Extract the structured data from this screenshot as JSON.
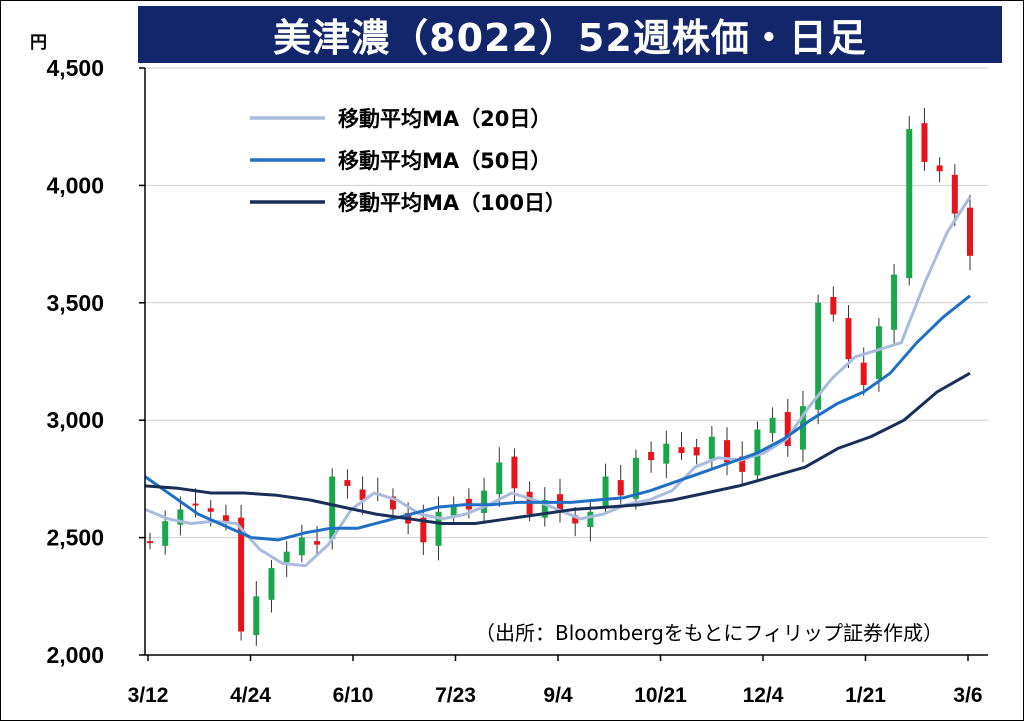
{
  "title": "美津濃（8022）52週株価・日足",
  "unit_label": "円",
  "source_note": "（出所：Bloombergをもとにフィリップ証券作成）",
  "colors": {
    "title_bg": "#13266b",
    "up": "#1aa64b",
    "down": "#e8141b",
    "ma20": "#a9bcdd",
    "ma50": "#1f6fc5",
    "ma100": "#1a2f57",
    "grid": "#d0d0d0"
  },
  "chart_data": {
    "type": "line",
    "ylim": [
      2000,
      4500
    ],
    "yticks": [
      2000,
      2500,
      3000,
      3500,
      4000,
      4500
    ],
    "ytick_labels": [
      "2,000",
      "2,500",
      "3,000",
      "3,500",
      "4,000",
      "4,500"
    ],
    "xtick_labels": [
      "3/12",
      "4/24",
      "6/10",
      "7/23",
      "9/4",
      "10/21",
      "12/4",
      "1/21",
      "3/6"
    ],
    "grid": "horizontal",
    "legend_position": "top-left",
    "series": [
      {
        "name": "移動平均MA（20日）",
        "key": "ma20",
        "values": [
          2620,
          2580,
          2560,
          2570,
          2560,
          2450,
          2390,
          2380,
          2470,
          2620,
          2690,
          2660,
          2600,
          2580,
          2600,
          2640,
          2690,
          2660,
          2620,
          2580,
          2600,
          2640,
          2660,
          2700,
          2800,
          2840,
          2830,
          2860,
          2920,
          3060,
          3180,
          3270,
          3300,
          3330,
          3580,
          3800,
          3950
        ]
      },
      {
        "name": "移動平均MA（50日）",
        "key": "ma50",
        "values": [
          2760,
          2680,
          2600,
          2550,
          2500,
          2490,
          2520,
          2540,
          2540,
          2570,
          2600,
          2630,
          2640,
          2640,
          2650,
          2650,
          2650,
          2660,
          2670,
          2700,
          2740,
          2780,
          2820,
          2860,
          2920,
          3000,
          3070,
          3120,
          3200,
          3330,
          3440,
          3530
        ]
      },
      {
        "name": "移動平均MA（100日）",
        "key": "ma100",
        "values": [
          2720,
          2710,
          2690,
          2690,
          2680,
          2660,
          2630,
          2600,
          2580,
          2560,
          2560,
          2580,
          2600,
          2620,
          2630,
          2640,
          2660,
          2690,
          2720,
          2760,
          2800,
          2880,
          2930,
          3000,
          3120,
          3200
        ]
      }
    ],
    "candles_close": [
      2480,
      2570,
      2620,
      2640,
      2610,
      2560,
      2100,
      2250,
      2370,
      2440,
      2500,
      2470,
      2760,
      2720,
      2660,
      2690,
      2620,
      2560,
      2480,
      2610,
      2640,
      2620,
      2700,
      2820,
      2710,
      2600,
      2660,
      2610,
      2560,
      2610,
      2760,
      2680,
      2840,
      2830,
      2900,
      2860,
      2850,
      2930,
      2820,
      2780,
      2960,
      3010,
      2890,
      3060,
      3500,
      3450,
      3260,
      3150,
      3400,
      3620,
      4240,
      4100,
      4060,
      3880,
      3700
    ]
  }
}
